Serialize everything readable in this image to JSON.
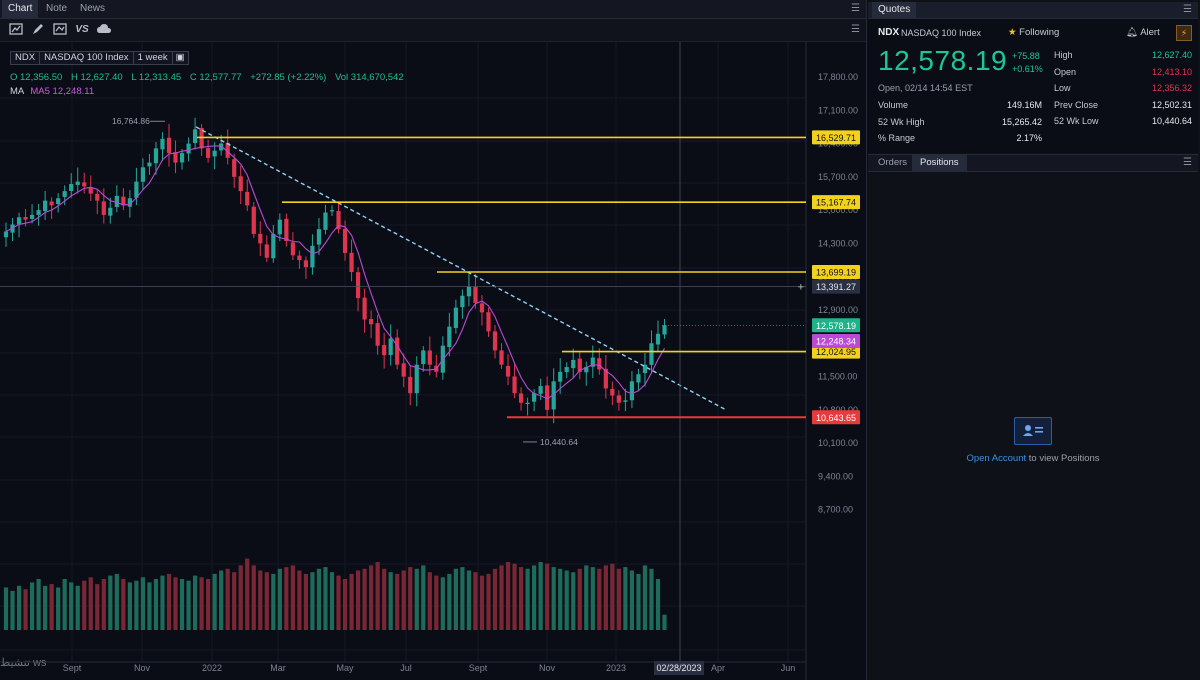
{
  "tabs": [
    "Chart",
    "Note",
    "News"
  ],
  "symbol_badges": [
    "NDX",
    "NASDAQ 100 Index",
    "1 week"
  ],
  "ohlc": {
    "o": "O 12,356.50",
    "h": "H 12,627.40",
    "l": "L 12,313.45",
    "c": "C 12,577.77",
    "chg": "+272.85 (+2.22%)",
    "vol": "Vol 314,670,542"
  },
  "ma": {
    "label": "MA",
    "value": "MA5 12,248.11"
  },
  "quotes": {
    "title": "Quotes",
    "symbol": "NDX",
    "name": "NASDAQ 100 Index",
    "following": "Following",
    "alert": "Alert",
    "price": "12,578.19",
    "change": "+75.88",
    "change_pct": "+0.61%",
    "open_time": "Open, 02/14 14:54 EST",
    "left_rows": [
      {
        "label": "Volume",
        "value": "149.16M"
      },
      {
        "label": "52 Wk High",
        "value": "15,265.42"
      },
      {
        "label": "% Range",
        "value": "2.17%"
      }
    ],
    "right_rows": [
      {
        "label": "High",
        "value": "12,627.40"
      },
      {
        "label": "Open",
        "value": "12,413.10"
      },
      {
        "label": "Low",
        "value": "12,356.32"
      },
      {
        "label": "Prev Close",
        "value": "12,502.31"
      },
      {
        "label": "52 Wk Low",
        "value": "10,440.64"
      }
    ]
  },
  "panel_tabs": [
    "Orders",
    "Positions"
  ],
  "open_account": {
    "link": "Open Account",
    "text": " to view Positions"
  },
  "watermark": "تنشيط ws",
  "colors": {
    "up": "#26a69a",
    "down": "#e0354f",
    "level": "#f3d21e",
    "support": "#e83a3a",
    "ma": "#b84ad6",
    "trend": "#8fd3f4"
  },
  "chart_data": {
    "type": "candlestick",
    "title": "NDX NASDAQ 100 Index 1 week",
    "y_ticks": [
      17800,
      17100,
      16400,
      15700,
      15000,
      14300,
      13600,
      12900,
      12200,
      11500,
      10800,
      10100,
      9400,
      8700
    ],
    "y_tick_labels": [
      "17,800.00",
      "17,100.00",
      "16,400.00",
      "15,700.00",
      "15,000.00",
      "14,300.00",
      "13,600.00",
      "12,900.00",
      "12,200.00",
      "11,500.00",
      "10,800.00",
      "10,100.00",
      "9,400.00",
      "8,700.00"
    ],
    "x_labels": [
      "Sept",
      "Nov",
      "2022",
      "Mar",
      "May",
      "Jul",
      "Sept",
      "Nov",
      "2023",
      "Apr",
      "Jun"
    ],
    "crosshair_date": "02/28/2023",
    "crosshair_price": "13,391.27",
    "horizontal_levels": [
      {
        "value": 16529.71,
        "label": "16,529.71",
        "color": "#f3d21e"
      },
      {
        "value": 15167.74,
        "label": "15,167.74",
        "color": "#f3d21e"
      },
      {
        "value": 13699.19,
        "label": "13,699.19",
        "color": "#f3d21e"
      },
      {
        "value": 12024.95,
        "label": "12,024.95",
        "color": "#f3d21e"
      },
      {
        "value": 10643.65,
        "label": "10,643.65",
        "color": "#e83a3a"
      }
    ],
    "price_tags": [
      {
        "value": 12578.19,
        "label": "12,578.19",
        "color": "#1fb38a"
      },
      {
        "value": 12248.34,
        "label": "12,248.34",
        "color": "#b84ad6"
      }
    ],
    "annotations": [
      {
        "text": "16,764.86",
        "value": 16764.86
      },
      {
        "text": "10,440.64",
        "value": 10440.64
      }
    ],
    "trendline": {
      "from": 16750,
      "to": 10800
    },
    "closes": [
      14550,
      14700,
      14850,
      14800,
      14900,
      15000,
      15200,
      15100,
      15250,
      15400,
      15550,
      15600,
      15500,
      15350,
      15200,
      14900,
      15050,
      15300,
      15100,
      15250,
      15600,
      15900,
      16000,
      16300,
      16500,
      16200,
      16000,
      16200,
      16400,
      16700,
      16300,
      16100,
      16250,
      16400,
      16100,
      15700,
      15400,
      15100,
      14500,
      14300,
      14000,
      14500,
      14800,
      14350,
      14050,
      13950,
      13800,
      14250,
      14600,
      14950,
      15000,
      14600,
      14100,
      13700,
      13150,
      12700,
      12600,
      12150,
      11950,
      12300,
      11750,
      11500,
      11150,
      11750,
      12050,
      11750,
      11600,
      12150,
      12550,
      12950,
      13200,
      13400,
      13050,
      12850,
      12450,
      12050,
      11750,
      11500,
      11150,
      10950,
      10950,
      11150,
      11300,
      10800,
      11400,
      11600,
      11700,
      11850,
      11600,
      11700,
      11900,
      11650,
      11250,
      11100,
      10950,
      11000,
      11400,
      11550,
      11750,
      12200,
      12400,
      12578
    ],
    "volumes": [
      250,
      230,
      260,
      240,
      280,
      300,
      260,
      270,
      250,
      300,
      280,
      260,
      290,
      310,
      270,
      300,
      320,
      330,
      300,
      280,
      290,
      310,
      280,
      300,
      320,
      330,
      310,
      300,
      290,
      320,
      310,
      300,
      330,
      350,
      360,
      340,
      380,
      420,
      380,
      350,
      340,
      330,
      360,
      370,
      380,
      350,
      330,
      340,
      360,
      370,
      340,
      320,
      300,
      330,
      350,
      360,
      380,
      400,
      360,
      340,
      330,
      350,
      370,
      360,
      380,
      340,
      320,
      310,
      330,
      360,
      370,
      350,
      340,
      320,
      330,
      360,
      380,
      400,
      390,
      370,
      360,
      380,
      400,
      390,
      370,
      360,
      350,
      340,
      360,
      380,
      370,
      360,
      380,
      390,
      360,
      370,
      350,
      330,
      380,
      360,
      300,
      90
    ]
  }
}
